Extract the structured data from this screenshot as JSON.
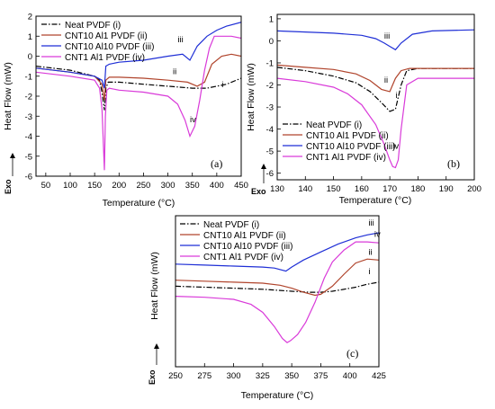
{
  "colors": {
    "neat": "#000000",
    "cnt10al1": "#b0442c",
    "cnt10al10": "#1f2fd6",
    "cnt1al1": "#d93ad9"
  },
  "legend": [
    {
      "label": "Neat PVDF (i)",
      "color": "#000000",
      "style": "dashdot"
    },
    {
      "label": "CNT10 Al1 PVDF (ii)",
      "color": "#b0442c",
      "style": "solid"
    },
    {
      "label": "CNT10 Al10 PVDF (iii)",
      "color": "#1f2fd6",
      "style": "solid"
    },
    {
      "label": "CNT1 Al1 PVDF (iv)",
      "color": "#d93ad9",
      "style": "solid"
    }
  ],
  "chart_data": [
    {
      "id": "a",
      "type": "line",
      "panel_label": "(a)",
      "xlabel": "Temperature (°C)",
      "ylabel": "Heat Flow (mW)",
      "exo_label": "Exo",
      "xlim": [
        30,
        450
      ],
      "ylim": [
        -6,
        2
      ],
      "xticks": [
        "50",
        "100",
        "150",
        "200",
        "250",
        "300",
        "350",
        "400",
        "450"
      ],
      "yticks": [
        "-6",
        "-5",
        "-4",
        "-3",
        "-2",
        "-1",
        "0",
        "1",
        "2"
      ],
      "annotations": [
        {
          "text": "iii",
          "x": 320,
          "y": 0.7
        },
        {
          "text": "ii",
          "x": 310,
          "y": -0.9
        },
        {
          "text": "i",
          "x": 410,
          "y": -1.55
        },
        {
          "text": "iv",
          "x": 345,
          "y": -3.3
        }
      ],
      "series": [
        {
          "name": "Neat PVDF (i)",
          "color": "#000000",
          "dash": "dashdot",
          "x": [
            30,
            100,
            150,
            160,
            165,
            170,
            173,
            178,
            200,
            250,
            300,
            350,
            380,
            400,
            420,
            450
          ],
          "y": [
            -0.5,
            -0.7,
            -1.0,
            -1.2,
            -1.8,
            -2.7,
            -1.6,
            -1.3,
            -1.3,
            -1.4,
            -1.5,
            -1.6,
            -1.6,
            -1.5,
            -1.4,
            -1.1
          ]
        },
        {
          "name": "CNT10 Al1 PVDF (ii)",
          "color": "#b0442c",
          "dash": "solid",
          "x": [
            30,
            100,
            150,
            165,
            170,
            173,
            180,
            200,
            250,
            300,
            340,
            360,
            375,
            390,
            410,
            430,
            450
          ],
          "y": [
            -0.6,
            -0.8,
            -1.0,
            -1.4,
            -2.2,
            -1.2,
            -1.05,
            -1.05,
            -1.1,
            -1.2,
            -1.3,
            -1.5,
            -1.3,
            -0.4,
            0.0,
            0.1,
            0.0
          ]
        },
        {
          "name": "CNT10 Al10 PVDF (iii)",
          "color": "#1f2fd6",
          "dash": "solid",
          "x": [
            30,
            100,
            150,
            165,
            170,
            173,
            180,
            200,
            250,
            300,
            330,
            345,
            360,
            380,
            400,
            420,
            450
          ],
          "y": [
            -0.6,
            -0.8,
            -1.0,
            -1.2,
            -1.6,
            -0.5,
            -0.4,
            -0.3,
            -0.2,
            0.0,
            0.1,
            -0.2,
            0.5,
            1.0,
            1.3,
            1.5,
            1.7
          ]
        },
        {
          "name": "CNT1 Al1 PVDF (iv)",
          "color": "#d93ad9",
          "dash": "solid",
          "x": [
            30,
            100,
            150,
            160,
            165,
            170,
            172,
            175,
            180,
            200,
            250,
            300,
            320,
            335,
            345,
            355,
            365,
            375,
            385,
            395,
            410,
            430,
            450
          ],
          "y": [
            -0.8,
            -1.0,
            -1.2,
            -1.6,
            -2.6,
            -5.7,
            -3.0,
            -1.7,
            -1.6,
            -1.7,
            -1.8,
            -2.0,
            -2.4,
            -3.2,
            -4.0,
            -3.5,
            -2.2,
            -0.7,
            0.4,
            1.0,
            1.0,
            1.0,
            0.9
          ]
        }
      ]
    },
    {
      "id": "b",
      "type": "line",
      "panel_label": "(b)",
      "xlabel": "Temperature (°C)",
      "ylabel": "Heat Flow (mW)",
      "exo_label": "Exo",
      "xlim": [
        130,
        200
      ],
      "ylim": [
        -6.3,
        1.2
      ],
      "xticks": [
        "130",
        "140",
        "150",
        "160",
        "170",
        "180",
        "190",
        "200"
      ],
      "yticks": [
        "-6",
        "-5",
        "-4",
        "-3",
        "-2",
        "-1",
        "0",
        "1"
      ],
      "annotations": [
        {
          "text": "iii",
          "x": 168,
          "y": 0.1
        },
        {
          "text": "ii",
          "x": 168,
          "y": -1.9
        },
        {
          "text": "i",
          "x": 172,
          "y": -2.6
        },
        {
          "text": "iv",
          "x": 171,
          "y": -4.9
        }
      ],
      "series": [
        {
          "name": "Neat PVDF (i)",
          "color": "#000000",
          "dash": "dashdot",
          "x": [
            130,
            140,
            150,
            158,
            163,
            167,
            170,
            172,
            174,
            176,
            180,
            190,
            200
          ],
          "y": [
            -1.2,
            -1.35,
            -1.6,
            -1.9,
            -2.3,
            -2.8,
            -3.2,
            -3.1,
            -2.0,
            -1.35,
            -1.25,
            -1.25,
            -1.25
          ]
        },
        {
          "name": "CNT10 Al1 PVDF (ii)",
          "color": "#b0442c",
          "dash": "solid",
          "x": [
            130,
            140,
            150,
            158,
            163,
            167,
            170,
            172,
            174,
            177,
            180,
            190,
            200
          ],
          "y": [
            -1.1,
            -1.2,
            -1.3,
            -1.5,
            -1.8,
            -2.2,
            -2.3,
            -1.7,
            -1.35,
            -1.25,
            -1.25,
            -1.25,
            -1.25
          ]
        },
        {
          "name": "CNT10 Al10 PVDF (iii)",
          "color": "#1f2fd6",
          "dash": "solid",
          "x": [
            130,
            140,
            150,
            160,
            165,
            168,
            170,
            172,
            174,
            178,
            185,
            200
          ],
          "y": [
            0.45,
            0.4,
            0.35,
            0.25,
            0.1,
            -0.1,
            -0.25,
            -0.4,
            -0.1,
            0.3,
            0.45,
            0.5
          ]
        },
        {
          "name": "CNT1 Al1 PVDF (iv)",
          "color": "#d93ad9",
          "dash": "solid",
          "x": [
            130,
            140,
            150,
            155,
            160,
            165,
            168,
            170,
            171,
            172,
            173,
            174,
            176,
            180,
            190,
            200
          ],
          "y": [
            -1.7,
            -1.85,
            -2.1,
            -2.4,
            -2.9,
            -3.8,
            -4.7,
            -5.4,
            -5.7,
            -5.75,
            -5.4,
            -4.0,
            -2.0,
            -1.7,
            -1.7,
            -1.7
          ]
        }
      ]
    },
    {
      "id": "c",
      "type": "line",
      "panel_label": "(c)",
      "xlabel": "Temperature (°C)",
      "ylabel": "Heat Flow (mW)",
      "exo_label": "Exo",
      "xlim": [
        250,
        425
      ],
      "ylim": [
        -5.2,
        2.3
      ],
      "xticks": [
        "250",
        "275",
        "300",
        "325",
        "350",
        "375",
        "400",
        "425"
      ],
      "yticks": [],
      "annotations": [
        {
          "text": "iii",
          "x": 416,
          "y": 1.8
        },
        {
          "text": "iv",
          "x": 421,
          "y": 1.25
        },
        {
          "text": "ii",
          "x": 416,
          "y": 0.35
        },
        {
          "text": "i",
          "x": 416,
          "y": -0.6
        }
      ],
      "series": [
        {
          "name": "Neat PVDF (i)",
          "color": "#000000",
          "dash": "dashdot",
          "x": [
            250,
            275,
            300,
            325,
            350,
            365,
            375,
            385,
            395,
            405,
            415,
            425
          ],
          "y": [
            -1.2,
            -1.25,
            -1.3,
            -1.35,
            -1.45,
            -1.5,
            -1.5,
            -1.45,
            -1.35,
            -1.25,
            -1.1,
            -1.0
          ]
        },
        {
          "name": "CNT10 Al1 PVDF (ii)",
          "color": "#b0442c",
          "dash": "solid",
          "x": [
            250,
            275,
            300,
            325,
            340,
            350,
            360,
            370,
            375,
            385,
            395,
            405,
            415,
            425
          ],
          "y": [
            -0.9,
            -0.95,
            -1.0,
            -1.05,
            -1.15,
            -1.3,
            -1.5,
            -1.65,
            -1.6,
            -1.2,
            -0.6,
            -0.05,
            0.15,
            0.1
          ]
        },
        {
          "name": "CNT10 Al10 PVDF (iii)",
          "color": "#1f2fd6",
          "dash": "solid",
          "x": [
            250,
            275,
            300,
            325,
            335,
            345,
            350,
            360,
            375,
            390,
            405,
            415,
            425
          ],
          "y": [
            -0.1,
            -0.15,
            -0.2,
            -0.25,
            -0.3,
            -0.45,
            -0.25,
            0.1,
            0.5,
            0.9,
            1.2,
            1.35,
            1.45
          ]
        },
        {
          "name": "CNT1 Al1 PVDF (iv)",
          "color": "#d93ad9",
          "dash": "solid",
          "x": [
            250,
            275,
            300,
            315,
            325,
            335,
            342,
            346,
            349,
            355,
            362,
            370,
            378,
            385,
            395,
            405,
            415,
            425
          ],
          "y": [
            -1.7,
            -1.75,
            -1.85,
            -2.1,
            -2.5,
            -3.2,
            -3.8,
            -4.0,
            -3.9,
            -3.6,
            -3.0,
            -2.0,
            -0.8,
            0.0,
            0.6,
            1.0,
            1.0,
            0.95
          ]
        }
      ]
    }
  ]
}
